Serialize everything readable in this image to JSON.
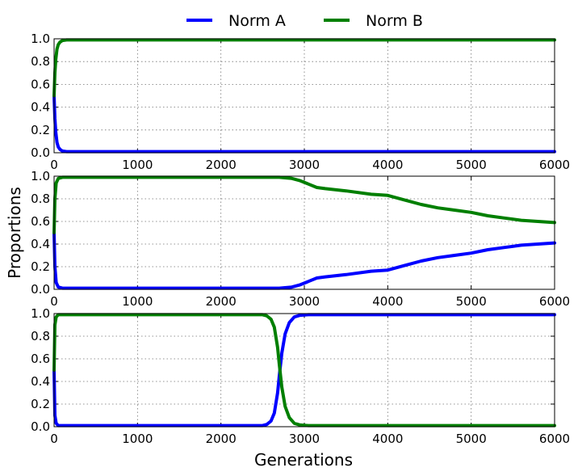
{
  "chart_data": {
    "type": "line",
    "xlabel": "Generations",
    "ylabel": "Proportions",
    "legend_placement": "top-center",
    "colors": {
      "Norm A": "#0000ff",
      "Norm B": "#007f00"
    },
    "grid": true,
    "panels": [
      {
        "xlim": [
          0,
          6000
        ],
        "ylim": [
          0,
          1
        ],
        "x_ticks": [
          "0",
          "1000",
          "2000",
          "3000",
          "4000",
          "5000",
          "6000"
        ],
        "y_ticks": [
          "0.0",
          "0.2",
          "0.4",
          "0.6",
          "0.8",
          "1.0"
        ],
        "series": [
          {
            "name": "Norm A",
            "x": [
              0,
              10,
              20,
              35,
              50,
              70,
              100,
              150,
              200,
              6000
            ],
            "y": [
              0.5,
              0.3,
              0.18,
              0.09,
              0.05,
              0.03,
              0.015,
              0.01,
              0.01,
              0.01
            ]
          },
          {
            "name": "Norm B",
            "x": [
              0,
              10,
              20,
              35,
              50,
              70,
              100,
              150,
              200,
              6000
            ],
            "y": [
              0.5,
              0.7,
              0.82,
              0.91,
              0.95,
              0.97,
              0.985,
              0.99,
              0.99,
              0.99
            ]
          }
        ]
      },
      {
        "xlim": [
          0,
          6000
        ],
        "ylim": [
          0,
          1
        ],
        "x_ticks": [
          "0",
          "1000",
          "2000",
          "3000",
          "4000",
          "5000",
          "6000"
        ],
        "y_ticks": [
          "0.0",
          "0.2",
          "0.4",
          "0.6",
          "0.8",
          "1.0"
        ],
        "series": [
          {
            "name": "Norm A",
            "x": [
              0,
              10,
              25,
              50,
              100,
              150,
              2700,
              2850,
              2950,
              3050,
              3150,
              3250,
              3500,
              3800,
              4000,
              4200,
              4400,
              4600,
              4800,
              5000,
              5200,
              5400,
              5600,
              5800,
              6000
            ],
            "y": [
              0.5,
              0.2,
              0.06,
              0.02,
              0.01,
              0.01,
              0.01,
              0.02,
              0.04,
              0.07,
              0.1,
              0.11,
              0.13,
              0.16,
              0.17,
              0.21,
              0.25,
              0.28,
              0.3,
              0.32,
              0.35,
              0.37,
              0.39,
              0.4,
              0.41
            ]
          },
          {
            "name": "Norm B",
            "x": [
              0,
              10,
              25,
              50,
              100,
              150,
              2700,
              2850,
              2950,
              3050,
              3150,
              3250,
              3500,
              3800,
              4000,
              4200,
              4400,
              4600,
              4800,
              5000,
              5200,
              5400,
              5600,
              5800,
              6000
            ],
            "y": [
              0.5,
              0.8,
              0.94,
              0.98,
              0.99,
              0.99,
              0.99,
              0.98,
              0.96,
              0.93,
              0.9,
              0.89,
              0.87,
              0.84,
              0.83,
              0.79,
              0.75,
              0.72,
              0.7,
              0.68,
              0.65,
              0.63,
              0.61,
              0.6,
              0.59
            ]
          }
        ]
      },
      {
        "xlim": [
          0,
          6000
        ],
        "ylim": [
          0,
          1
        ],
        "x_ticks": [
          "0",
          "1000",
          "2000",
          "3000",
          "4000",
          "5000",
          "6000"
        ],
        "y_ticks": [
          "0.0",
          "0.2",
          "0.4",
          "0.6",
          "0.8",
          "1.0"
        ],
        "series": [
          {
            "name": "Norm A",
            "x": [
              0,
              10,
              25,
              50,
              100,
              2500,
              2550,
              2600,
              2640,
              2680,
              2700,
              2730,
              2770,
              2820,
              2880,
              2950,
              3050,
              6000
            ],
            "y": [
              0.5,
              0.1,
              0.03,
              0.01,
              0.01,
              0.01,
              0.02,
              0.05,
              0.12,
              0.3,
              0.45,
              0.65,
              0.82,
              0.92,
              0.97,
              0.985,
              0.99,
              0.99
            ]
          },
          {
            "name": "Norm B",
            "x": [
              0,
              10,
              25,
              50,
              100,
              2500,
              2550,
              2600,
              2640,
              2680,
              2700,
              2730,
              2770,
              2820,
              2880,
              2950,
              3050,
              6000
            ],
            "y": [
              0.5,
              0.9,
              0.97,
              0.99,
              0.99,
              0.99,
              0.98,
              0.95,
              0.88,
              0.7,
              0.55,
              0.35,
              0.18,
              0.08,
              0.03,
              0.015,
              0.01,
              0.01
            ]
          }
        ]
      }
    ]
  }
}
